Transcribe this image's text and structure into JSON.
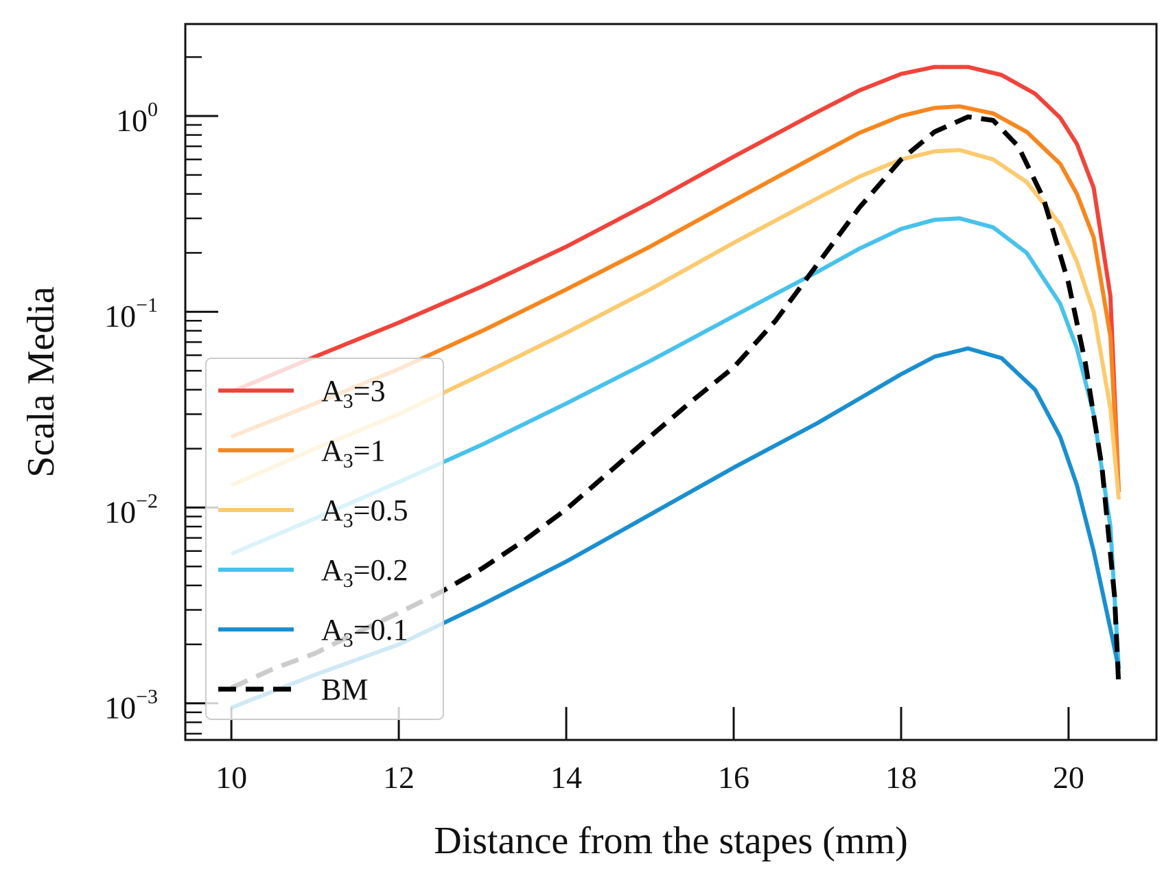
{
  "chart_data": {
    "type": "line",
    "xlabel": "Distance from the stapes (mm)",
    "ylabel": "Scala Media",
    "xlim": [
      9.45,
      21.05
    ],
    "ylim": [
      0.00065,
      2.95
    ],
    "yscale": "log",
    "x_ticks": [
      10,
      12,
      14,
      16,
      18,
      20
    ],
    "y_ticks": [
      {
        "value": 0.001,
        "base": "10",
        "exp": "−3"
      },
      {
        "value": 0.01,
        "base": "10",
        "exp": "−2"
      },
      {
        "value": 0.1,
        "base": "10",
        "exp": "−1"
      },
      {
        "value": 1,
        "base": "10",
        "exp": "0"
      }
    ],
    "legend_position": "lower-left",
    "grid": false,
    "series": [
      {
        "name": "A3=3",
        "label_base": "A",
        "label_sub": "3",
        "label_rest": "=3",
        "color": "#f0443a",
        "style": "solid",
        "x": [
          10,
          11,
          12,
          13,
          14,
          15,
          16,
          17,
          17.5,
          18,
          18.4,
          18.8,
          19.2,
          19.6,
          19.9,
          20.1,
          20.3,
          20.5,
          20.6
        ],
        "y": [
          0.039,
          0.059,
          0.088,
          0.135,
          0.215,
          0.36,
          0.62,
          1.05,
          1.35,
          1.64,
          1.78,
          1.78,
          1.62,
          1.3,
          0.98,
          0.72,
          0.43,
          0.12,
          0.012
        ]
      },
      {
        "name": "A3=1",
        "label_base": "A",
        "label_sub": "3",
        "label_rest": "=1",
        "color": "#f7861e",
        "style": "solid",
        "x": [
          10,
          11,
          12,
          13,
          14,
          15,
          16,
          17,
          17.5,
          18,
          18.4,
          18.7,
          19.1,
          19.5,
          19.9,
          20.1,
          20.3,
          20.5,
          20.6
        ],
        "y": [
          0.023,
          0.034,
          0.051,
          0.08,
          0.13,
          0.215,
          0.37,
          0.63,
          0.82,
          1.0,
          1.1,
          1.12,
          1.03,
          0.83,
          0.57,
          0.4,
          0.24,
          0.075,
          0.012
        ]
      },
      {
        "name": "A3=0.5",
        "label_base": "A",
        "label_sub": "3",
        "label_rest": "=0.5",
        "color": "#fdca6e",
        "style": "solid",
        "x": [
          10,
          11,
          12,
          13,
          14,
          15,
          16,
          17,
          17.5,
          18,
          18.4,
          18.7,
          19.1,
          19.5,
          19.9,
          20.1,
          20.3,
          20.5,
          20.6
        ],
        "y": [
          0.013,
          0.02,
          0.03,
          0.048,
          0.078,
          0.13,
          0.225,
          0.38,
          0.49,
          0.6,
          0.66,
          0.67,
          0.6,
          0.46,
          0.28,
          0.18,
          0.1,
          0.032,
          0.011
        ]
      },
      {
        "name": "A3=0.2",
        "label_base": "A",
        "label_sub": "3",
        "label_rest": "=0.2",
        "color": "#47c2ec",
        "style": "solid",
        "x": [
          10,
          11,
          12,
          13,
          14,
          15,
          16,
          17,
          17.5,
          18,
          18.4,
          18.7,
          19.1,
          19.5,
          19.9,
          20.1,
          20.3,
          20.5,
          20.6
        ],
        "y": [
          0.0058,
          0.0088,
          0.0135,
          0.021,
          0.034,
          0.056,
          0.095,
          0.16,
          0.21,
          0.265,
          0.295,
          0.3,
          0.27,
          0.2,
          0.11,
          0.065,
          0.03,
          0.008,
          0.0015
        ]
      },
      {
        "name": "A3=0.1",
        "label_base": "A",
        "label_sub": "3",
        "label_rest": "=0.1",
        "color": "#1a8fcf",
        "style": "solid",
        "x": [
          10,
          11,
          12,
          13,
          14,
          15,
          16,
          17,
          17.5,
          18,
          18.4,
          18.8,
          19.2,
          19.6,
          19.9,
          20.1,
          20.3,
          20.5,
          20.6
        ],
        "y": [
          0.00095,
          0.0014,
          0.002,
          0.0032,
          0.0053,
          0.0092,
          0.016,
          0.027,
          0.036,
          0.048,
          0.059,
          0.065,
          0.058,
          0.04,
          0.023,
          0.013,
          0.006,
          0.0024,
          0.0015
        ]
      },
      {
        "name": "BM",
        "label_base": "BM",
        "label_sub": "",
        "label_rest": "",
        "color": "#000000",
        "style": "dashed",
        "x": [
          10,
          10.5,
          11,
          11.5,
          12,
          12.5,
          13,
          13.5,
          14,
          14.5,
          15,
          15.5,
          16,
          16.5,
          17,
          17.5,
          18,
          18.4,
          18.8,
          19.1,
          19.4,
          19.7,
          20,
          20.2,
          20.4,
          20.55,
          20.6
        ],
        "y": [
          0.0012,
          0.0015,
          0.0018,
          0.0023,
          0.0029,
          0.0037,
          0.0049,
          0.0068,
          0.0098,
          0.015,
          0.023,
          0.035,
          0.052,
          0.09,
          0.175,
          0.34,
          0.6,
          0.83,
          0.99,
          0.95,
          0.7,
          0.38,
          0.14,
          0.055,
          0.016,
          0.0035,
          0.0012
        ]
      }
    ]
  }
}
